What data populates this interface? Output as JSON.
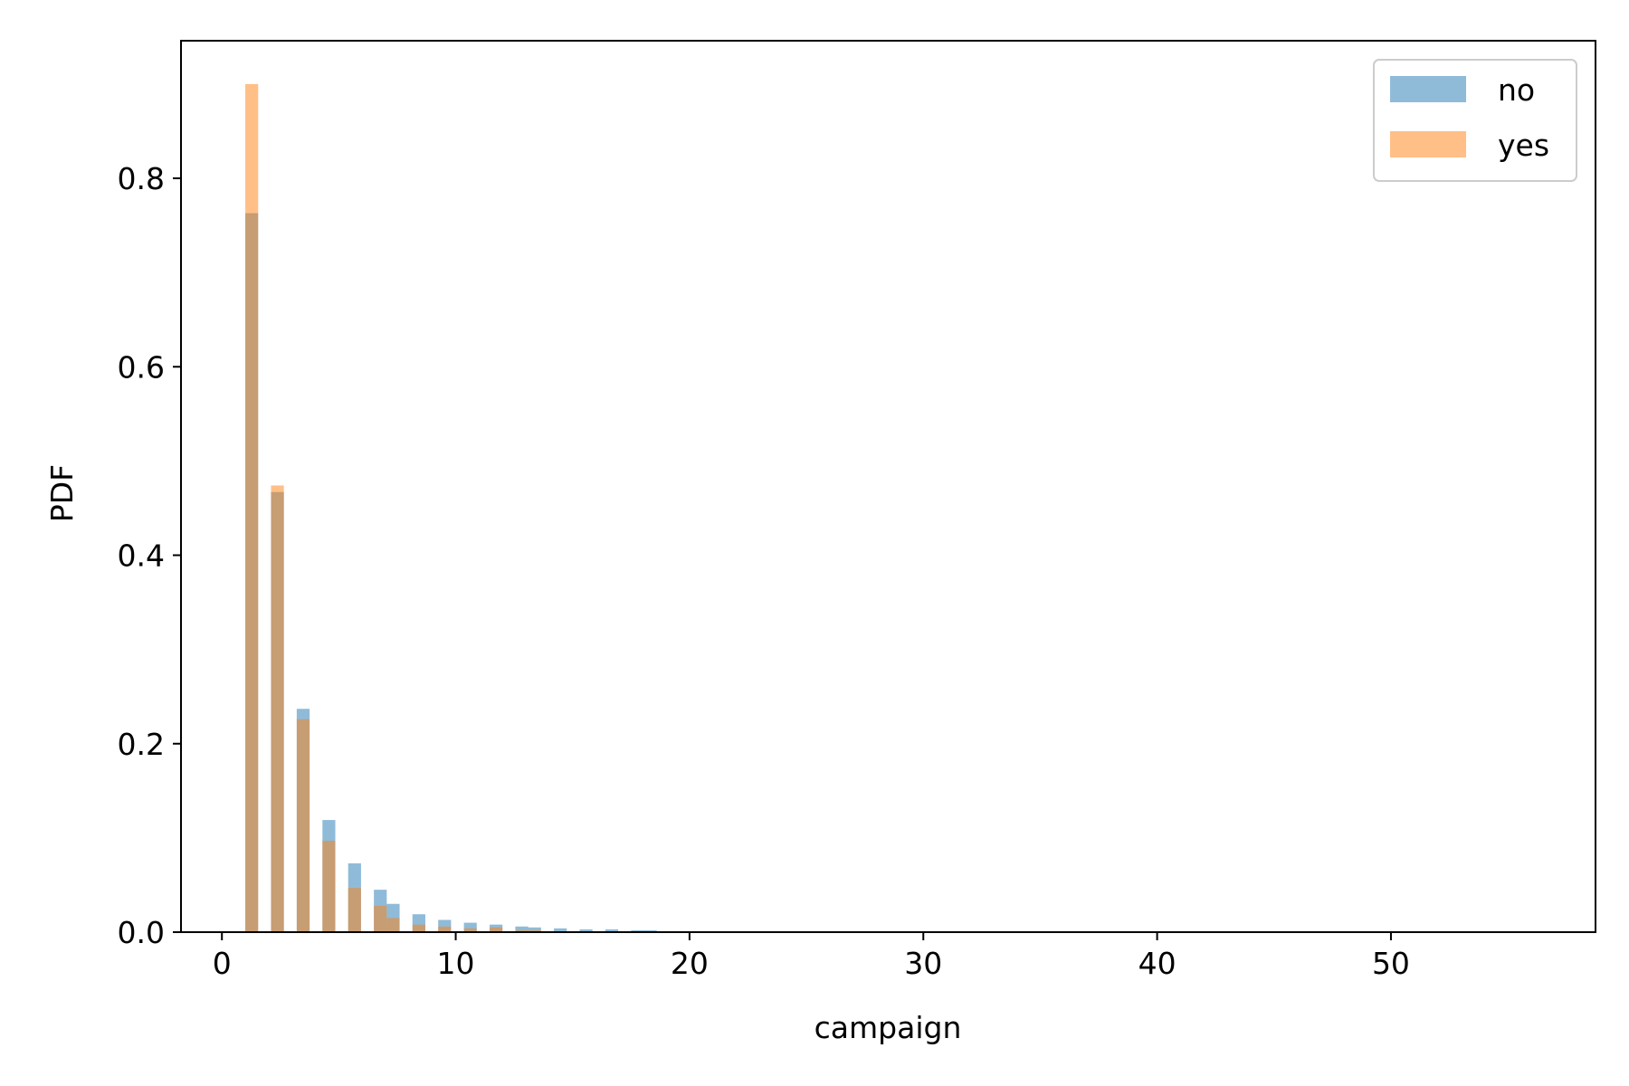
{
  "chart_data": {
    "type": "bar",
    "xlabel": "campaign",
    "ylabel": "PDF",
    "xlim": [
      -1.75,
      58.75
    ],
    "ylim": [
      0,
      0.946
    ],
    "xticks": [
      0,
      10,
      20,
      30,
      40,
      50
    ],
    "xtick_labels": [
      "0",
      "10",
      "20",
      "30",
      "40",
      "50"
    ],
    "yticks": [
      0.0,
      0.2,
      0.4,
      0.6,
      0.8
    ],
    "ytick_labels": [
      "0.0",
      "0.2",
      "0.4",
      "0.6",
      "0.8"
    ],
    "bin_width": 0.55,
    "legend_position": "upper right",
    "series": [
      {
        "name": "no",
        "color": "#1f77b4",
        "alpha": 0.5,
        "bins": [
          {
            "x": 1.0,
            "y": 0.763
          },
          {
            "x": 1.55,
            "y": 0.0
          },
          {
            "x": 2.1,
            "y": 0.467
          },
          {
            "x": 3.2,
            "y": 0.237
          },
          {
            "x": 4.3,
            "y": 0.119
          },
          {
            "x": 5.4,
            "y": 0.073
          },
          {
            "x": 6.5,
            "y": 0.045
          },
          {
            "x": 7.05,
            "y": 0.03
          },
          {
            "x": 8.15,
            "y": 0.019
          },
          {
            "x": 9.25,
            "y": 0.013
          },
          {
            "x": 10.35,
            "y": 0.01
          },
          {
            "x": 11.45,
            "y": 0.008
          },
          {
            "x": 12.55,
            "y": 0.006
          },
          {
            "x": 13.1,
            "y": 0.005
          },
          {
            "x": 14.2,
            "y": 0.004
          },
          {
            "x": 15.3,
            "y": 0.003
          },
          {
            "x": 16.4,
            "y": 0.003
          },
          {
            "x": 17.5,
            "y": 0.002
          },
          {
            "x": 18.05,
            "y": 0.002
          },
          {
            "x": 19.15,
            "y": 0.001
          },
          {
            "x": 20.25,
            "y": 0.001
          }
        ]
      },
      {
        "name": "yes",
        "color": "#ff7f0e",
        "alpha": 0.5,
        "bins": [
          {
            "x": 1.0,
            "y": 0.9
          },
          {
            "x": 1.55,
            "y": 0.0
          },
          {
            "x": 2.1,
            "y": 0.474
          },
          {
            "x": 3.2,
            "y": 0.226
          },
          {
            "x": 4.3,
            "y": 0.097
          },
          {
            "x": 5.4,
            "y": 0.047
          },
          {
            "x": 6.5,
            "y": 0.028
          },
          {
            "x": 7.05,
            "y": 0.015
          },
          {
            "x": 8.15,
            "y": 0.008
          },
          {
            "x": 9.25,
            "y": 0.006
          },
          {
            "x": 10.35,
            "y": 0.004
          },
          {
            "x": 11.45,
            "y": 0.005
          },
          {
            "x": 12.55,
            "y": 0.002
          },
          {
            "x": 13.1,
            "y": 0.002
          },
          {
            "x": 17.5,
            "y": 0.001
          }
        ]
      }
    ]
  }
}
